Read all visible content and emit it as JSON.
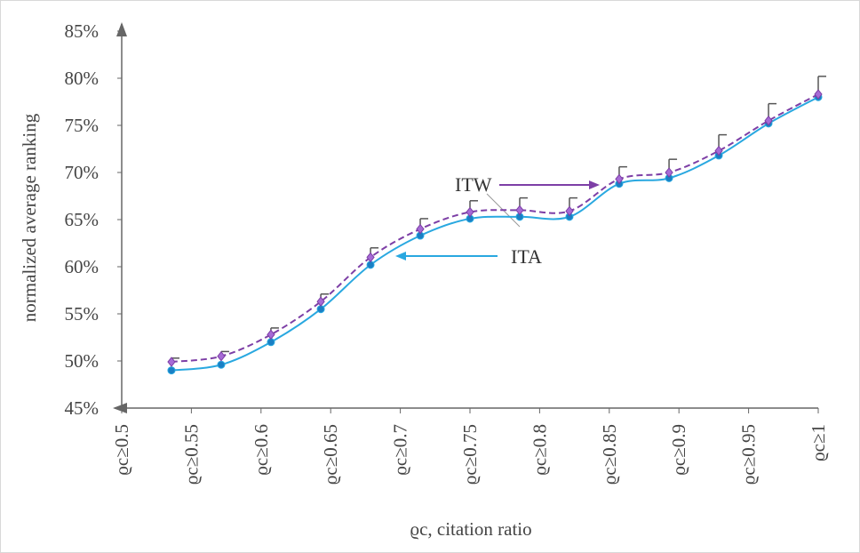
{
  "chart_data": {
    "type": "line",
    "xlabel": "ϱc, citation ratio",
    "ylabel": "normalized average ranking",
    "xlim": [
      0.5,
      1.0
    ],
    "ylim": [
      45,
      85
    ],
    "xticks": [
      {
        "value": 0.5,
        "label": "ϱc≥0.5"
      },
      {
        "value": 0.55,
        "label": "ϱc≥0.55"
      },
      {
        "value": 0.6,
        "label": "ϱc≥0.6"
      },
      {
        "value": 0.65,
        "label": "ϱc≥0.65"
      },
      {
        "value": 0.7,
        "label": "ϱc≥0.7"
      },
      {
        "value": 0.75,
        "label": "ϱc≥0.75"
      },
      {
        "value": 0.8,
        "label": "ϱc≥0.8"
      },
      {
        "value": 0.85,
        "label": "ϱc≥0.85"
      },
      {
        "value": 0.9,
        "label": "ϱc≥0.9"
      },
      {
        "value": 0.95,
        "label": "ϱc≥0.95"
      },
      {
        "value": 1.0,
        "label": "ϱc≥1"
      }
    ],
    "yticks": [
      {
        "value": 45,
        "label": "45%"
      },
      {
        "value": 50,
        "label": "50%"
      },
      {
        "value": 55,
        "label": "55%"
      },
      {
        "value": 60,
        "label": "60%"
      },
      {
        "value": 65,
        "label": "65%"
      },
      {
        "value": 70,
        "label": "70%"
      },
      {
        "value": 75,
        "label": "75%"
      },
      {
        "value": 80,
        "label": "80%"
      },
      {
        "value": 85,
        "label": "85%"
      }
    ],
    "grid": false,
    "x": [
      0.5357,
      0.5714,
      0.6071,
      0.6429,
      0.6786,
      0.7143,
      0.75,
      0.7857,
      0.8214,
      0.8571,
      0.8929,
      0.9286,
      0.9643,
      1.0
    ],
    "series": [
      {
        "name": "ITA",
        "color": "#29a8e0",
        "marker_color": "#1a7fc4",
        "dashed": false,
        "values": [
          49.0,
          49.6,
          52.0,
          55.5,
          60.2,
          63.3,
          65.1,
          65.3,
          65.3,
          68.8,
          69.4,
          71.8,
          75.2,
          78.0
        ]
      },
      {
        "name": "ITW",
        "color": "#7d3fa6",
        "marker_color": "#a66ad6",
        "dashed": true,
        "values": [
          49.9,
          50.5,
          52.8,
          56.3,
          61.0,
          64.0,
          65.8,
          66.0,
          65.9,
          69.3,
          70.0,
          72.3,
          75.5,
          78.3
        ],
        "errors": [
          0.4,
          0.5,
          0.7,
          0.8,
          1.0,
          1.1,
          1.2,
          1.3,
          1.4,
          1.3,
          1.4,
          1.7,
          1.8,
          1.9
        ]
      }
    ],
    "annotations": [
      {
        "text": "ITW"
      },
      {
        "text": "ITA"
      }
    ]
  }
}
